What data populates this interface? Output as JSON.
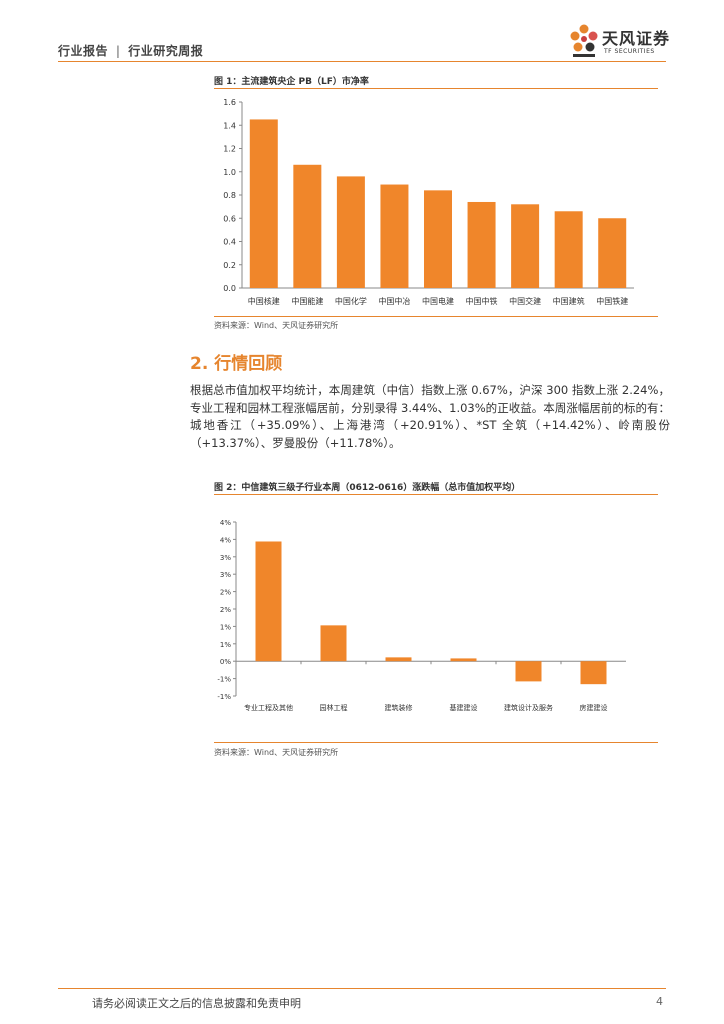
{
  "header": {
    "category": "行业报告",
    "subcategory": "行业研究周报",
    "separator": "|",
    "logo_cn": "天风证券",
    "logo_en": "TF SECURITIES",
    "logo_color": "#e6852e"
  },
  "figure1": {
    "title": "图 1：主流建筑央企 PB（LF）市净率",
    "source": "资料来源：Wind、天风证券研究所"
  },
  "section": {
    "title": "2. 行情回顾",
    "paragraph": "根据总市值加权平均统计，本周建筑（中信）指数上涨 0.67%，沪深 300 指数上涨 2.24%，专业工程和园林工程涨幅居前，分别录得 3.44%、1.03%的正收益。本周涨幅居前的标的有：城地香江（+35.09%）、上海港湾（+20.91%）、*ST 全筑（+14.42%）、岭南股份（+13.37%）、罗曼股份（+11.78%）。"
  },
  "figure2": {
    "title": "图 2：中信建筑三级子行业本周（0612-0616）涨跌幅（总市值加权平均）",
    "source": "资料来源：Wind、天风证券研究所"
  },
  "footer": {
    "disclaimer": "请务必阅读正文之后的信息披露和免责申明",
    "page": "4"
  },
  "chart_data": [
    {
      "type": "bar",
      "categories": [
        "中国核建",
        "中国能建",
        "中国化学",
        "中国中冶",
        "中国电建",
        "中国中铁",
        "中国交建",
        "中国建筑",
        "中国铁建"
      ],
      "values": [
        1.45,
        1.06,
        0.96,
        0.89,
        0.84,
        0.74,
        0.72,
        0.66,
        0.6
      ],
      "ylim": [
        0,
        1.6
      ],
      "yticks": [
        "0.0",
        "0.2",
        "0.4",
        "0.6",
        "0.8",
        "1.0",
        "1.2",
        "1.4",
        "1.6"
      ],
      "color": "#f0862a",
      "grid": false
    },
    {
      "type": "bar",
      "categories": [
        "专业工程及其他",
        "园林工程",
        "建筑装修",
        "基建建设",
        "建筑设计及服务",
        "房建建设"
      ],
      "values": [
        3.44,
        1.03,
        0.11,
        0.08,
        -0.58,
        -0.66
      ],
      "ylim": [
        -1,
        4
      ],
      "ytick_values": [
        -1,
        -0.5,
        0,
        0.5,
        1,
        1.5,
        2,
        2.5,
        3,
        3.5,
        4
      ],
      "yticks": [
        "-1%",
        "-1%",
        "0%",
        "1%",
        "1%",
        "2%",
        "2%",
        "3%",
        "3%",
        "4%",
        "4%"
      ],
      "color": "#f0862a",
      "grid": false
    }
  ]
}
